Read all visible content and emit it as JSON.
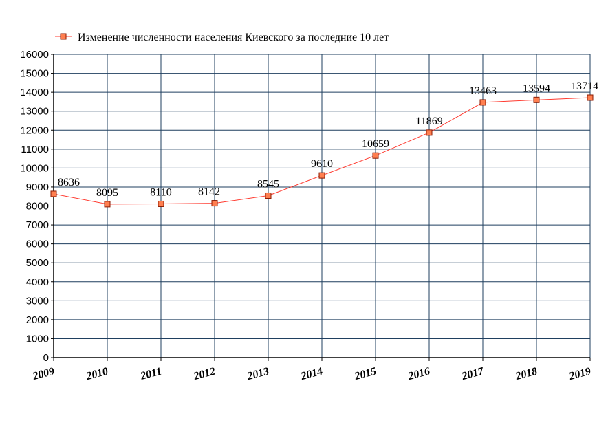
{
  "chart_data": {
    "type": "line",
    "title": "",
    "xlabel": "",
    "ylabel": "",
    "categories": [
      "2009",
      "2010",
      "2011",
      "2012",
      "2013",
      "2014",
      "2015",
      "2016",
      "2017",
      "2018",
      "2019"
    ],
    "series": [
      {
        "name": "Изменение численности населения Киевского за последние 10 лет",
        "values": [
          8636,
          8095,
          8110,
          8142,
          8545,
          9610,
          10659,
          11869,
          13463,
          13594,
          13714
        ],
        "data_labels": [
          "8636",
          "8095",
          "8110",
          "8142",
          "8545",
          "9610",
          "10659",
          "11869",
          "13463",
          "13594",
          "13714"
        ]
      }
    ],
    "ylim": [
      0,
      16000
    ],
    "y_ticks": [
      "0",
      "1000",
      "2000",
      "3000",
      "4000",
      "5000",
      "6000",
      "7000",
      "8000",
      "9000",
      "10000",
      "11000",
      "12000",
      "13000",
      "14000",
      "15000",
      "16000"
    ],
    "grid": true,
    "legend_position": "top",
    "colors": {
      "line": "#ff3b30",
      "marker_fill": "#ff7f50",
      "marker_stroke": "#8b1a00",
      "grid": "#1f3f5f",
      "axis": "#000000"
    }
  }
}
